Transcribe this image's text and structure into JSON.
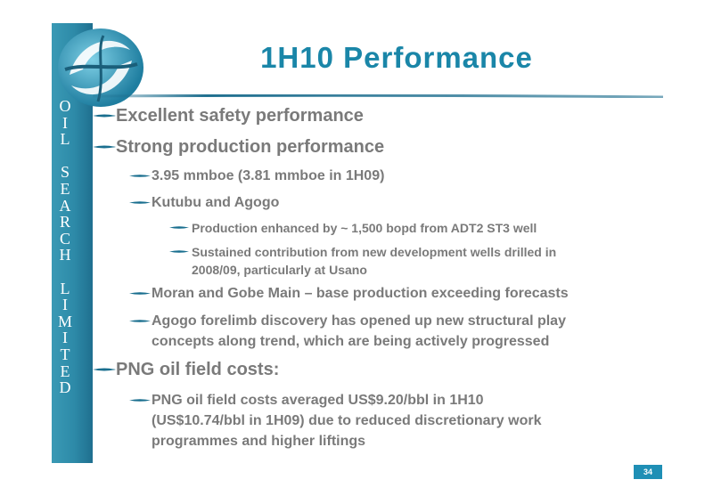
{
  "slide": {
    "title": "1H10 Performance",
    "page_number": "34",
    "sidebar_letters": [
      "O",
      "I",
      "L",
      "",
      "S",
      "E",
      "A",
      "R",
      "C",
      "H",
      "",
      "L",
      "I",
      "M",
      "I",
      "T",
      "E",
      "D"
    ],
    "accent_color": "#1a86a8",
    "text_color": "#7a7a7a"
  },
  "bullets": {
    "safety": "Excellent safety performance",
    "production": "Strong production performance",
    "mmboe": "3.95 mmboe (3.81 mmboe in 1H09)",
    "kutubu": "Kutubu and Agogo",
    "adt2": "Production enhanced by ~ 1,500 bopd from ADT2 ST3 well",
    "sustained_1": "Sustained contribution from new development wells drilled in",
    "sustained_2": "2008/09, particularly at Usano",
    "moran": "Moran and Gobe Main – base production exceeding forecasts",
    "agogo_1": "Agogo forelimb discovery has opened up new structural play",
    "agogo_2": "concepts along trend, which are being actively progressed",
    "costs": "PNG oil field costs:",
    "costs_1": "PNG oil field costs averaged US$9.20/bbl in 1H10",
    "costs_2": "(US$10.74/bbl in 1H09) due to reduced discretionary work",
    "costs_3": "programmes and higher liftings"
  }
}
